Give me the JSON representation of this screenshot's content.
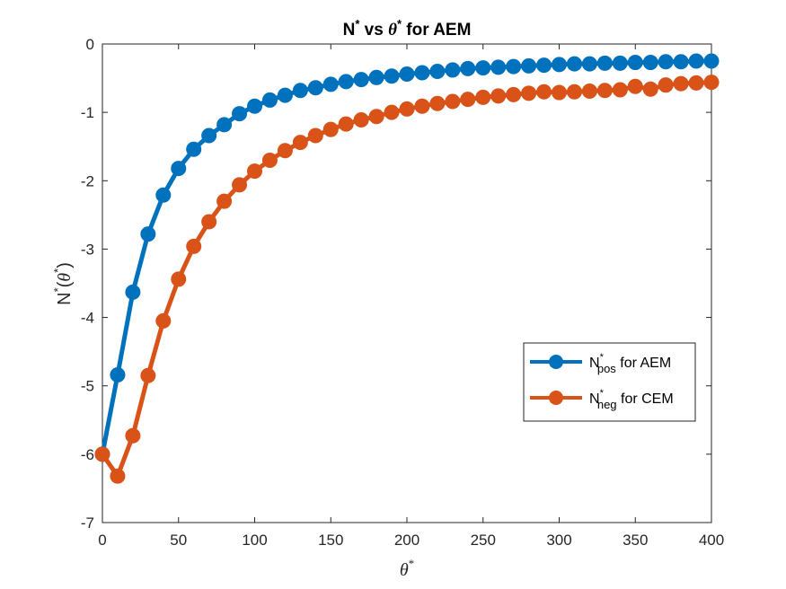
{
  "chart_data": {
    "type": "line",
    "title": {
      "main": "N",
      "sup1": "*",
      "mid": " vs ",
      "theta": "θ",
      "sup2": "*",
      "end": " for AEM"
    },
    "xlabel": {
      "symbol": "θ",
      "sup": "*"
    },
    "ylabel": {
      "base": "N",
      "sup": "*",
      "open": "(",
      "theta": "θ",
      "sup2": "*",
      "close": ")"
    },
    "xlim": [
      0,
      400
    ],
    "ylim": [
      -7,
      0
    ],
    "xticks": [
      "0",
      "50",
      "100",
      "150",
      "200",
      "250",
      "300",
      "350",
      "400"
    ],
    "yticks": [
      "0",
      "-1",
      "-2",
      "-3",
      "-4",
      "-5",
      "-6",
      "-7"
    ],
    "grid": false,
    "legend_position": "right",
    "legend": [
      {
        "base": "N",
        "sup": "*",
        "sub": "pos",
        "rest": " for AEM",
        "color": "#0072BD"
      },
      {
        "base": "N",
        "sup": "*",
        "sub": "neg",
        "rest": " for CEM",
        "color": "#D95319"
      }
    ],
    "x": [
      0,
      10,
      20,
      30,
      40,
      50,
      60,
      70,
      80,
      90,
      100,
      110,
      120,
      130,
      140,
      150,
      160,
      170,
      180,
      190,
      200,
      210,
      220,
      230,
      240,
      250,
      260,
      270,
      280,
      290,
      300,
      310,
      320,
      330,
      340,
      350,
      360,
      370,
      380,
      390,
      400
    ],
    "series": [
      {
        "color": "#0072BD",
        "values": [
          -6.0,
          -4.84,
          -3.63,
          -2.78,
          -2.21,
          -1.82,
          -1.54,
          -1.34,
          -1.18,
          -1.02,
          -0.91,
          -0.82,
          -0.75,
          -0.68,
          -0.64,
          -0.59,
          -0.55,
          -0.52,
          -0.49,
          -0.47,
          -0.44,
          -0.42,
          -0.4,
          -0.38,
          -0.36,
          -0.35,
          -0.34,
          -0.33,
          -0.32,
          -0.31,
          -0.3,
          -0.29,
          -0.29,
          -0.28,
          -0.28,
          -0.27,
          -0.27,
          -0.26,
          -0.26,
          -0.25,
          -0.25
        ]
      },
      {
        "color": "#D95319",
        "values": [
          -6.0,
          -6.32,
          -5.73,
          -4.85,
          -4.05,
          -3.44,
          -2.96,
          -2.6,
          -2.3,
          -2.06,
          -1.86,
          -1.7,
          -1.56,
          -1.44,
          -1.34,
          -1.25,
          -1.17,
          -1.11,
          -1.06,
          -1.0,
          -0.95,
          -0.91,
          -0.87,
          -0.84,
          -0.81,
          -0.78,
          -0.76,
          -0.74,
          -0.72,
          -0.7,
          -0.71,
          -0.7,
          -0.69,
          -0.68,
          -0.67,
          -0.62,
          -0.66,
          -0.6,
          -0.58,
          -0.57,
          -0.56
        ]
      }
    ]
  }
}
